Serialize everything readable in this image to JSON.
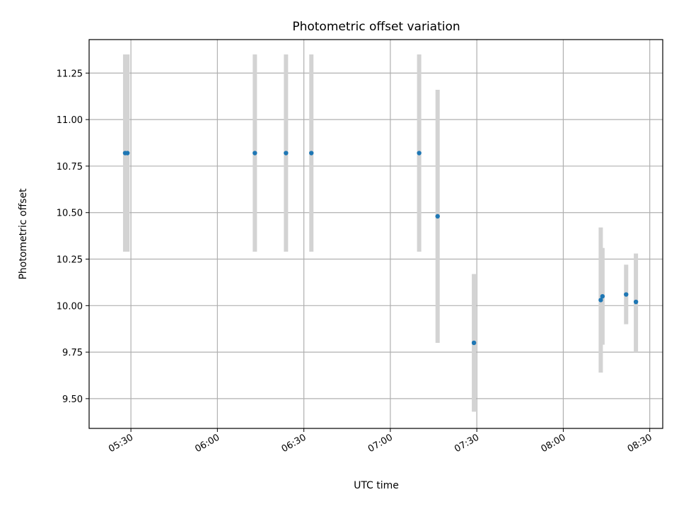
{
  "chart_data": {
    "type": "scatter",
    "title": "Photometric offset variation",
    "xlabel": "UTC time",
    "ylabel": "Photometric offset",
    "xlim_minutes": [
      315.5,
      514.5
    ],
    "ylim": [
      9.34,
      11.43
    ],
    "grid": true,
    "x_ticks": [
      {
        "minutes": 330,
        "label": "05:30"
      },
      {
        "minutes": 360,
        "label": "06:00"
      },
      {
        "minutes": 390,
        "label": "06:30"
      },
      {
        "minutes": 420,
        "label": "07:00"
      },
      {
        "minutes": 450,
        "label": "07:30"
      },
      {
        "minutes": 480,
        "label": "08:00"
      },
      {
        "minutes": 510,
        "label": "08:30"
      }
    ],
    "y_ticks": [
      {
        "value": 9.5,
        "label": "9.50"
      },
      {
        "value": 9.75,
        "label": "9.75"
      },
      {
        "value": 10.0,
        "label": "10.00"
      },
      {
        "value": 10.25,
        "label": "10.25"
      },
      {
        "value": 10.5,
        "label": "10.50"
      },
      {
        "value": 10.75,
        "label": "10.75"
      },
      {
        "value": 11.0,
        "label": "11.00"
      },
      {
        "value": 11.25,
        "label": "11.25"
      }
    ],
    "points": [
      {
        "x": 328.0,
        "y": 10.82,
        "err_low": 10.29,
        "err_high": 11.35
      },
      {
        "x": 328.8,
        "y": 10.82,
        "err_low": 10.29,
        "err_high": 11.35
      },
      {
        "x": 373.0,
        "y": 10.82,
        "err_low": 10.29,
        "err_high": 11.35
      },
      {
        "x": 383.8,
        "y": 10.82,
        "err_low": 10.29,
        "err_high": 11.35
      },
      {
        "x": 392.6,
        "y": 10.82,
        "err_low": 10.29,
        "err_high": 11.35
      },
      {
        "x": 430.0,
        "y": 10.82,
        "err_low": 10.29,
        "err_high": 11.35
      },
      {
        "x": 436.4,
        "y": 10.48,
        "err_low": 9.8,
        "err_high": 11.16
      },
      {
        "x": 449.0,
        "y": 9.8,
        "err_low": 9.43,
        "err_high": 10.17
      },
      {
        "x": 493.0,
        "y": 10.03,
        "err_low": 9.64,
        "err_high": 10.42
      },
      {
        "x": 493.6,
        "y": 10.05,
        "err_low": 9.79,
        "err_high": 10.31
      },
      {
        "x": 501.8,
        "y": 10.06,
        "err_low": 9.9,
        "err_high": 10.22
      },
      {
        "x": 505.2,
        "y": 10.02,
        "err_low": 9.75,
        "err_high": 10.28
      }
    ],
    "marker_color": "#1f77b4",
    "errorbar_color": "#d3d3d3",
    "grid_color": "#b0b0b0"
  }
}
